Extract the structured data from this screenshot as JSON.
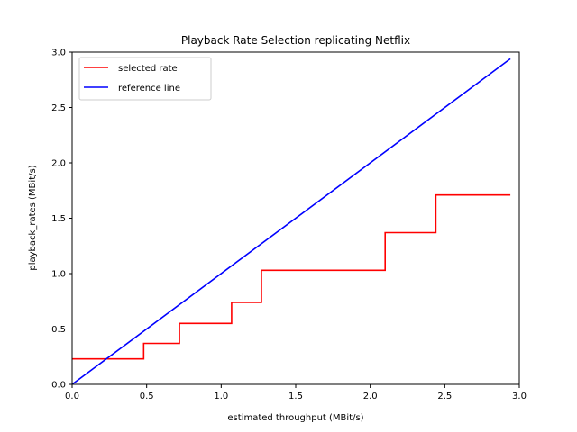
{
  "chart_data": {
    "type": "line",
    "title": "Playback Rate Selection replicating Netflix",
    "xlabel": "estimated throughput (MBit/s)",
    "ylabel": "playback_rates (MBit/s)",
    "xlim": [
      0.0,
      3.0
    ],
    "ylim": [
      0.0,
      3.0
    ],
    "xticks": [
      0.0,
      0.5,
      1.0,
      1.5,
      2.0,
      2.5,
      3.0
    ],
    "yticks": [
      0.0,
      0.5,
      1.0,
      1.5,
      2.0,
      2.5,
      3.0
    ],
    "xtick_labels": [
      "0.0",
      "0.5",
      "1.0",
      "1.5",
      "2.0",
      "2.5",
      "3.0"
    ],
    "ytick_labels": [
      "0.0",
      "0.5",
      "1.0",
      "1.5",
      "2.0",
      "2.5",
      "3.0"
    ],
    "grid": false,
    "legend_position": "top-left",
    "series": [
      {
        "name": "selected rate",
        "color": "#ff0000",
        "style": "step",
        "x": [
          0.0,
          0.48,
          0.48,
          0.72,
          0.72,
          1.07,
          1.07,
          1.27,
          1.27,
          2.1,
          2.1,
          2.44,
          2.44,
          2.94
        ],
        "y": [
          0.23,
          0.23,
          0.37,
          0.37,
          0.55,
          0.55,
          0.74,
          0.74,
          1.03,
          1.03,
          1.37,
          1.37,
          1.71,
          1.71
        ]
      },
      {
        "name": "reference line",
        "color": "#0000ff",
        "style": "line",
        "x": [
          0.0,
          2.94
        ],
        "y": [
          0.0,
          2.94
        ]
      }
    ]
  }
}
